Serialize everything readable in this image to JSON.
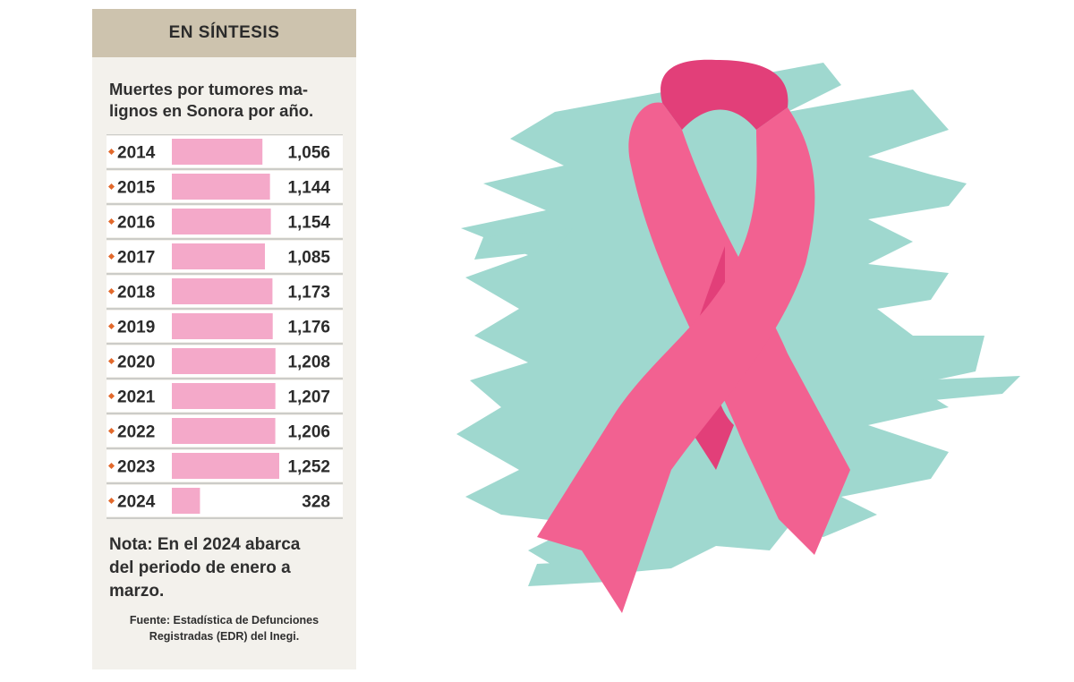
{
  "panel": {
    "title": "EN SÍNTESIS",
    "subtitle_lines": [
      "Muertes por tumores ma-",
      "lignos en Sonora por año."
    ],
    "note_lines": [
      "Nota: En el 2024 abarca",
      "del periodo de enero a",
      "marzo."
    ],
    "source_lines": [
      "Fuente: Estadística de Defunciones",
      "Registradas (EDR) del Inegi."
    ]
  },
  "chart_data": {
    "type": "bar",
    "title": "Muertes por tumores malignos en Sonora por año.",
    "categories": [
      "2014",
      "2015",
      "2016",
      "2017",
      "2018",
      "2019",
      "2020",
      "2021",
      "2022",
      "2023",
      "2024"
    ],
    "values": [
      1056,
      1144,
      1154,
      1085,
      1173,
      1176,
      1208,
      1207,
      1206,
      1252,
      328
    ],
    "value_labels": [
      "1,056",
      "1,144",
      "1,154",
      "1,085",
      "1,173",
      "1,176",
      "1,208",
      "1,207",
      "1,206",
      "1,252",
      "328"
    ],
    "bar_color": "#f4a9c9",
    "marker_color": "#e2692c"
  },
  "illustration": {
    "ribbon_color": "#f26191",
    "ribbon_dark": "#e23f79",
    "splash_color": "#9fd8cf",
    "icon": "pink-ribbon-icon"
  }
}
